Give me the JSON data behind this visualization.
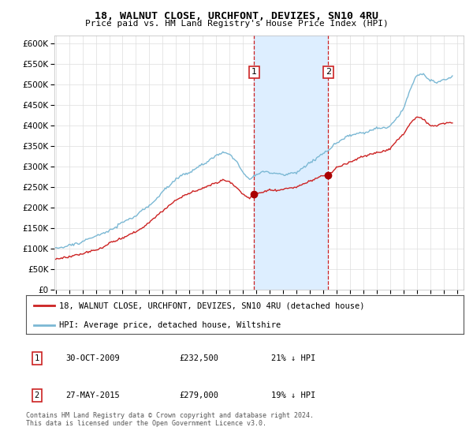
{
  "title": "18, WALNUT CLOSE, URCHFONT, DEVIZES, SN10 4RU",
  "subtitle": "Price paid vs. HM Land Registry's House Price Index (HPI)",
  "legend_line1": "18, WALNUT CLOSE, URCHFONT, DEVIZES, SN10 4RU (detached house)",
  "legend_line2": "HPI: Average price, detached house, Wiltshire",
  "footnote": "Contains HM Land Registry data © Crown copyright and database right 2024.\nThis data is licensed under the Open Government Licence v3.0.",
  "marker1_date": "30-OCT-2009",
  "marker1_price": "£232,500",
  "marker1_hpi": "21% ↓ HPI",
  "marker2_date": "27-MAY-2015",
  "marker2_price": "£279,000",
  "marker2_hpi": "19% ↓ HPI",
  "marker1_x": 2009.833,
  "marker2_x": 2015.375,
  "marker1_y": 232500,
  "marker2_y": 279000,
  "ylim": [
    0,
    620000
  ],
  "xlim_min": 1994.9,
  "xlim_max": 2025.5,
  "hpi_color": "#7bb8d4",
  "price_color": "#cc2222",
  "marker_box_color": "#cc2222",
  "shade_color": "#ddeeff",
  "grid_color": "#dddddd",
  "bg_color": "#ffffff"
}
